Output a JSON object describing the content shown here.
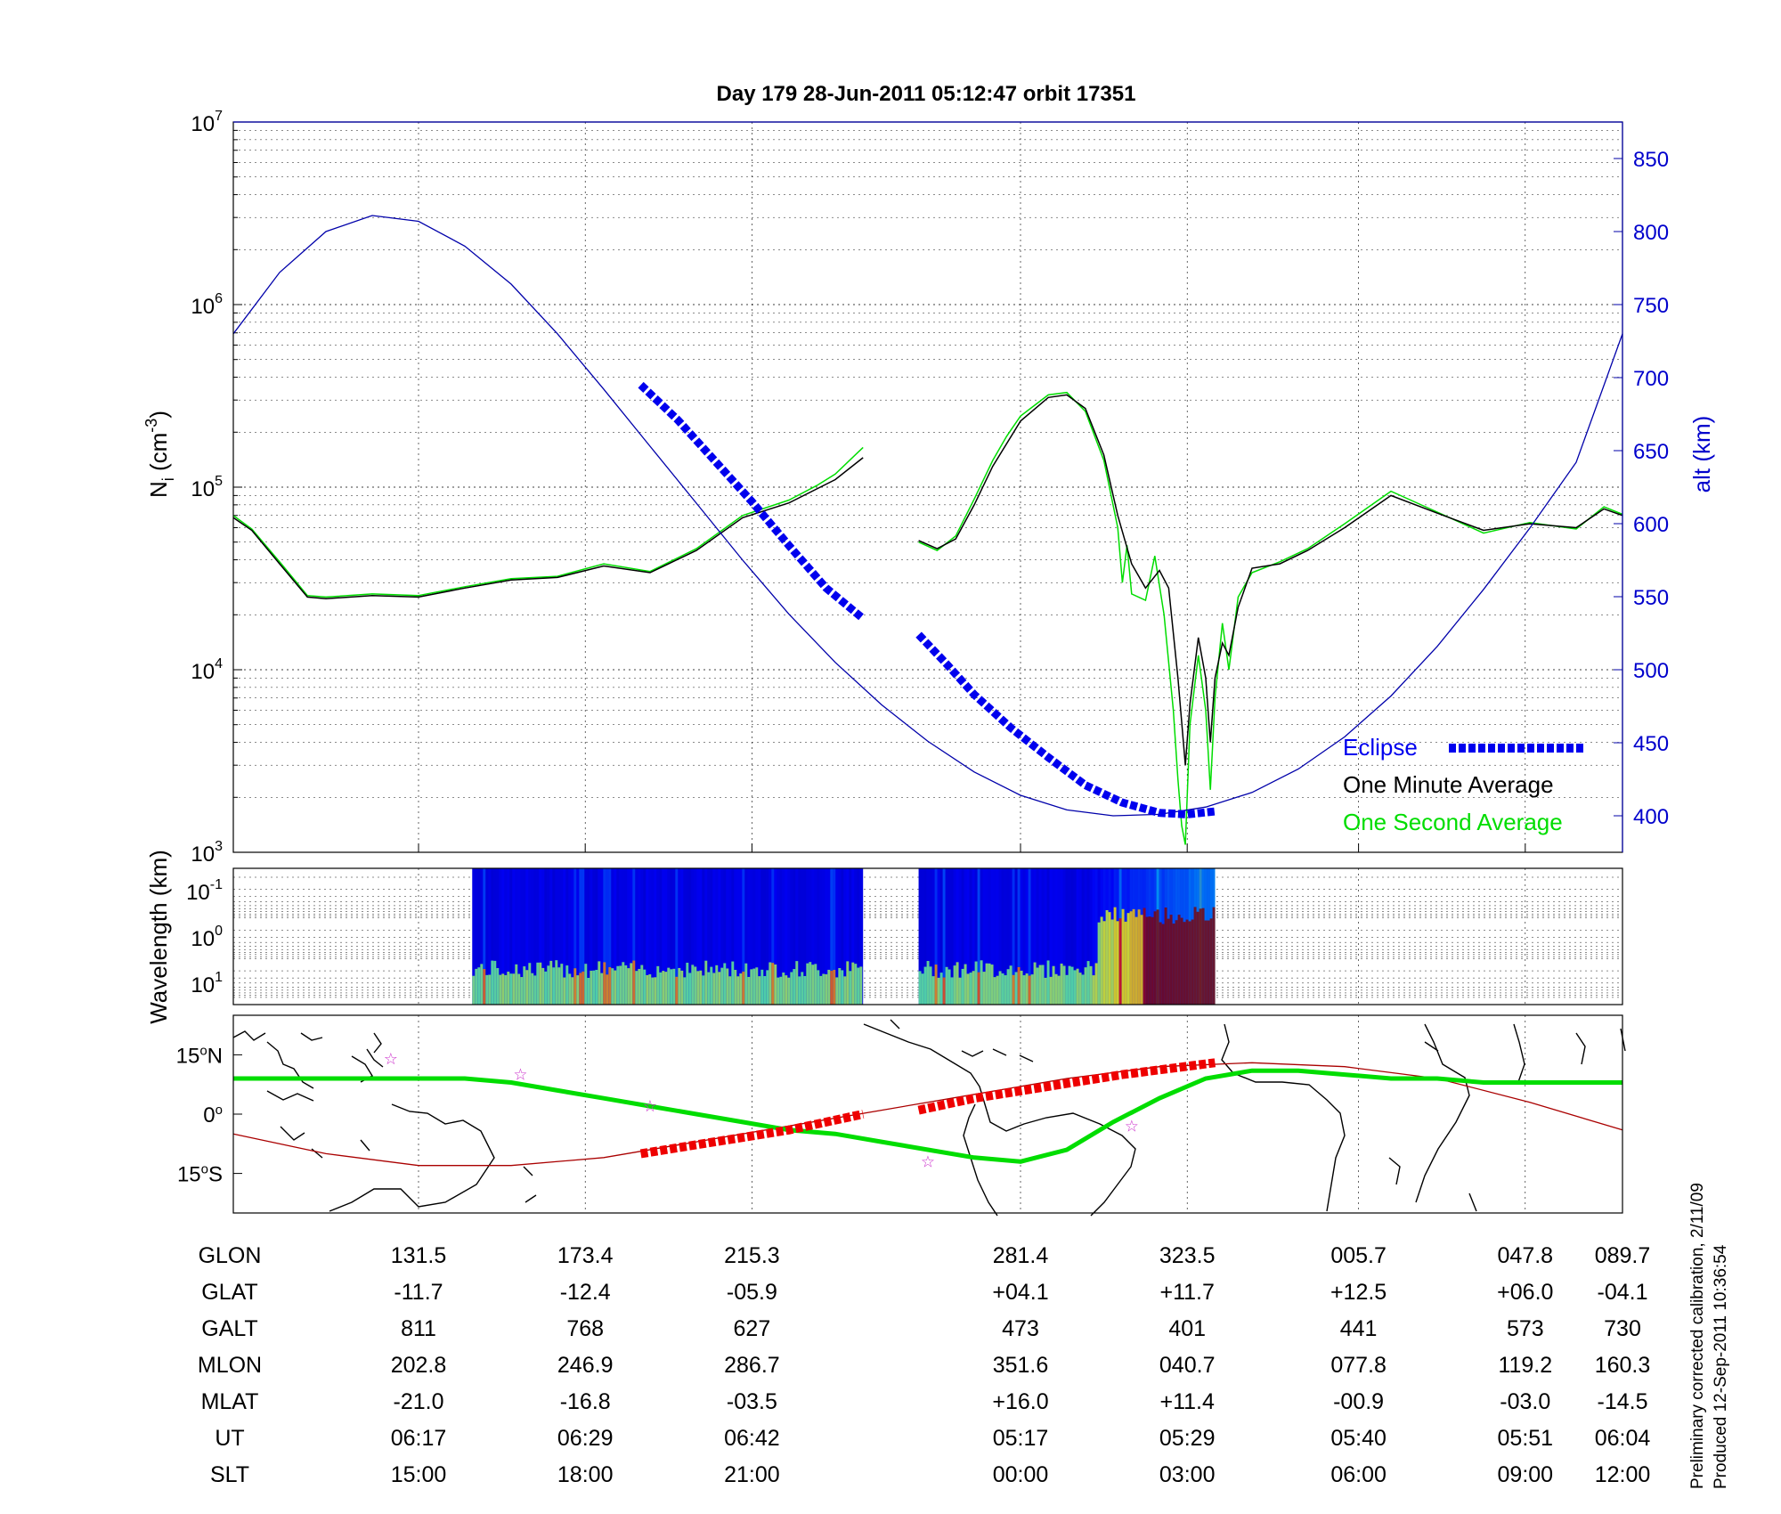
{
  "title": "Day 179  28-Jun-2011 05:12:47   orbit 17351",
  "colors": {
    "altitude": "#0000aa",
    "one_minute": "#000000",
    "one_second": "#00dd00",
    "eclipse": "#0000ee",
    "eclipse_map": "#ee0000",
    "star": "#cc33cc",
    "magnetic_equator": "#aa0000"
  },
  "chart_data": [
    {
      "type": "line",
      "panel": "density",
      "ylabel_main": "N",
      "ylabel_sub": "i",
      "ylabel_unit_pre": " (cm",
      "ylabel_unit_exp": "-3",
      "ylabel_unit_post": ")",
      "ylabel_right": "alt (km)",
      "y_scale": "log",
      "ylim": [
        1000,
        10000000
      ],
      "yticks": [
        {
          "base": "10",
          "exp": "3"
        },
        {
          "base": "10",
          "exp": "4"
        },
        {
          "base": "10",
          "exp": "5"
        },
        {
          "base": "10",
          "exp": "6"
        },
        {
          "base": "10",
          "exp": "7"
        }
      ],
      "y2lim": [
        375,
        875
      ],
      "y2ticks": [
        "400",
        "450",
        "500",
        "550",
        "600",
        "650",
        "700",
        "750",
        "800",
        "850"
      ],
      "grid": true,
      "legend": [
        {
          "name": "Eclipse",
          "color": "#0000ee",
          "style": "thick-dotted"
        },
        {
          "name": "One Minute Average",
          "color": "#000000"
        },
        {
          "name": "One Second Average",
          "color": "#00dd00"
        }
      ],
      "legend_placement": "bottom-right",
      "series": [
        {
          "name": "One Minute Average",
          "segments": [
            [
              [
                0,
                68000
              ],
              [
                0.2,
                58000
              ],
              [
                0.5,
                38000
              ],
              [
                0.8,
                25000
              ],
              [
                1,
                24500
              ],
              [
                1.5,
                25500
              ],
              [
                2,
                25000
              ],
              [
                2.5,
                28000
              ],
              [
                3,
                31000
              ],
              [
                3.5,
                32000
              ],
              [
                4,
                37000
              ],
              [
                4.5,
                34000
              ],
              [
                5,
                45000
              ],
              [
                5.5,
                68000
              ],
              [
                6,
                82000
              ],
              [
                6.5,
                110000
              ],
              [
                6.8,
                145000
              ]
            ],
            [
              [
                7.4,
                51000
              ],
              [
                7.6,
                46000
              ],
              [
                7.8,
                52000
              ],
              [
                8,
                80000
              ],
              [
                8.2,
                130000
              ],
              [
                8.5,
                230000
              ],
              [
                8.8,
                310000
              ],
              [
                9,
                320000
              ],
              [
                9.2,
                270000
              ],
              [
                9.4,
                150000
              ],
              [
                9.55,
                70000
              ],
              [
                9.7,
                38000
              ],
              [
                9.85,
                28000
              ],
              [
                10,
                35000
              ],
              [
                10.1,
                28000
              ],
              [
                10.2,
                9000
              ],
              [
                10.28,
                3000
              ],
              [
                10.33,
                6500
              ],
              [
                10.42,
                15000
              ],
              [
                10.5,
                9000
              ],
              [
                10.55,
                4000
              ],
              [
                10.6,
                9000
              ],
              [
                10.68,
                14000
              ],
              [
                10.75,
                12000
              ],
              [
                10.85,
                22000
              ],
              [
                11,
                36000
              ],
              [
                11.3,
                38000
              ],
              [
                11.6,
                45000
              ],
              [
                12,
                60000
              ],
              [
                12.5,
                90000
              ],
              [
                13,
                72000
              ],
              [
                13.5,
                58000
              ],
              [
                14,
                63000
              ],
              [
                14.5,
                60000
              ],
              [
                14.8,
                76000
              ],
              [
                15,
                70000
              ]
            ]
          ]
        },
        {
          "name": "One Second Average",
          "segments": [
            [
              [
                0,
                70000
              ],
              [
                0.2,
                59000
              ],
              [
                0.5,
                39000
              ],
              [
                0.8,
                25500
              ],
              [
                1,
                25000
              ],
              [
                1.5,
                26000
              ],
              [
                2,
                25500
              ],
              [
                2.5,
                28500
              ],
              [
                3,
                31500
              ],
              [
                3.5,
                32500
              ],
              [
                4,
                38000
              ],
              [
                4.5,
                34500
              ],
              [
                5,
                46000
              ],
              [
                5.5,
                70000
              ],
              [
                6,
                85000
              ],
              [
                6.3,
                102000
              ],
              [
                6.5,
                118000
              ],
              [
                6.8,
                165000
              ]
            ],
            [
              [
                7.4,
                50000
              ],
              [
                7.6,
                45000
              ],
              [
                7.8,
                54000
              ],
              [
                8,
                86000
              ],
              [
                8.2,
                140000
              ],
              [
                8.35,
                190000
              ],
              [
                8.5,
                245000
              ],
              [
                8.8,
                320000
              ],
              [
                9,
                330000
              ],
              [
                9.2,
                260000
              ],
              [
                9.4,
                140000
              ],
              [
                9.55,
                60000
              ],
              [
                9.6,
                30000
              ],
              [
                9.65,
                48000
              ],
              [
                9.7,
                26000
              ],
              [
                9.85,
                24000
              ],
              [
                9.95,
                42000
              ],
              [
                10.05,
                20000
              ],
              [
                10.15,
                6000
              ],
              [
                10.2,
                2500
              ],
              [
                10.24,
                1400
              ],
              [
                10.28,
                1100
              ],
              [
                10.33,
                5000
              ],
              [
                10.42,
                12000
              ],
              [
                10.5,
                6000
              ],
              [
                10.55,
                2200
              ],
              [
                10.6,
                7000
              ],
              [
                10.68,
                18000
              ],
              [
                10.75,
                10000
              ],
              [
                10.85,
                25000
              ],
              [
                11,
                34000
              ],
              [
                11.3,
                39000
              ],
              [
                11.6,
                46000
              ],
              [
                12,
                63000
              ],
              [
                12.5,
                95000
              ],
              [
                13,
                73000
              ],
              [
                13.5,
                56000
              ],
              [
                14,
                64000
              ],
              [
                14.5,
                59000
              ],
              [
                14.8,
                78000
              ],
              [
                15,
                71000
              ]
            ]
          ]
        },
        {
          "name": "Altitude",
          "axis": "right",
          "x": [
            0,
            0.5,
            1,
            1.5,
            2,
            2.5,
            3,
            3.5,
            4,
            4.5,
            5,
            5.5,
            6,
            6.5,
            7,
            7.5,
            8,
            8.5,
            9,
            9.5,
            10,
            10.5,
            11,
            11.5,
            12,
            12.5,
            13,
            13.5,
            14,
            14.5,
            15
          ],
          "y": [
            730,
            772,
            800,
            811,
            807,
            790,
            764,
            730,
            692,
            653,
            614,
            575,
            538,
            505,
            476,
            451,
            430,
            414,
            404,
            400,
            401,
            406,
            416,
            432,
            454,
            482,
            516,
            555,
            597,
            642,
            730
          ]
        },
        {
          "name": "Eclipse",
          "segments": [
            [
              [
                4.4,
                695
              ],
              [
                4.8,
                671
              ],
              [
                5.2,
                643
              ],
              [
                5.6,
                615
              ],
              [
                6,
                585
              ],
              [
                6.4,
                556
              ],
              [
                6.8,
                535
              ]
            ],
            [
              [
                7.4,
                524
              ],
              [
                7.7,
                504
              ],
              [
                8,
                483
              ],
              [
                8.4,
                460
              ],
              [
                8.8,
                440
              ],
              [
                9.2,
                421
              ],
              [
                9.6,
                409
              ],
              [
                10,
                402
              ],
              [
                10.3,
                401
              ],
              [
                10.6,
                403
              ]
            ]
          ]
        }
      ]
    },
    {
      "type": "heatmap",
      "panel": "spectrogram",
      "ylabel": "Wavelength (km)",
      "yticks": [
        {
          "base": "10",
          "exp": "-1"
        },
        {
          "base": "10",
          "exp": "0"
        },
        {
          "base": "10",
          "exp": "1"
        }
      ],
      "blocks": [
        {
          "x_start": 2.58,
          "x_end": 6.8
        },
        {
          "x_start": 7.4,
          "x_end": 10.6
        }
      ],
      "colormap": "jet"
    },
    {
      "type": "line",
      "panel": "map",
      "yticks": [
        {
          "deg": "15",
          "hem": "N"
        },
        {
          "deg": "0",
          "hem": ""
        },
        {
          "deg": "15",
          "hem": "S"
        }
      ],
      "ylim": [
        -25,
        25
      ],
      "series": [
        {
          "name": "Magnetic equator trace",
          "x": [
            0,
            0.5,
            1,
            1.5,
            2,
            2.5,
            3,
            3.5,
            4,
            4.5,
            5,
            5.5,
            6,
            6.5,
            7,
            7.5,
            8,
            8.5,
            9,
            9.5,
            10,
            10.5,
            11,
            11.5,
            12,
            12.5,
            13,
            13.5,
            14,
            14.5,
            15
          ],
          "y": [
            9,
            9,
            9,
            9,
            9,
            9,
            8,
            6,
            4,
            2,
            0,
            -2,
            -4,
            -5,
            -7,
            -9,
            -11,
            -12,
            -9,
            -2,
            4,
            9,
            11,
            11,
            10,
            9,
            9,
            8,
            8,
            8,
            8
          ]
        },
        {
          "name": "Orbit track",
          "x": [
            0,
            1,
            2,
            3,
            4,
            5,
            6,
            7,
            8,
            9,
            10,
            11,
            12,
            13,
            14,
            15
          ],
          "y": [
            -5,
            -10,
            -13,
            -13,
            -11,
            -7,
            -3,
            1,
            5,
            9,
            12,
            13,
            12,
            9,
            3,
            -4
          ]
        },
        {
          "name": "Eclipse",
          "segments": [
            [
              [
                4.4,
                -10
              ],
              [
                5.2,
                -7
              ],
              [
                6,
                -4
              ],
              [
                6.8,
                0
              ]
            ],
            [
              [
                7.4,
                1
              ],
              [
                8,
                4
              ],
              [
                8.8,
                7
              ],
              [
                9.6,
                10
              ],
              [
                10.6,
                13
              ]
            ]
          ]
        }
      ],
      "stars": [
        [
          1.7,
          14
        ],
        [
          3.1,
          10
        ],
        [
          4.5,
          2
        ],
        [
          7.5,
          -12
        ],
        [
          9.7,
          -3
        ]
      ]
    }
  ],
  "table": {
    "rows": [
      {
        "label": "GLON",
        "values": [
          "131.5",
          "173.4",
          "215.3",
          "281.4",
          "323.5",
          "005.7",
          "047.8",
          "089.7"
        ]
      },
      {
        "label": "GLAT",
        "values": [
          "-11.7",
          "-12.4",
          "-05.9",
          "+04.1",
          "+11.7",
          "+12.5",
          "+06.0",
          "-04.1"
        ]
      },
      {
        "label": "GALT",
        "values": [
          "811",
          "768",
          "627",
          "473",
          "401",
          "441",
          "573",
          "730"
        ]
      },
      {
        "label": "MLON",
        "values": [
          "202.8",
          "246.9",
          "286.7",
          "351.6",
          "040.7",
          "077.8",
          "119.2",
          "160.3"
        ]
      },
      {
        "label": "MLAT",
        "values": [
          "-21.0",
          "-16.8",
          "-03.5",
          "+16.0",
          "+11.4",
          "-00.9",
          "-03.0",
          "-14.5"
        ]
      },
      {
        "label": "UT",
        "values": [
          "06:17",
          "06:29",
          "06:42",
          "05:17",
          "05:29",
          "05:40",
          "05:51",
          "06:04"
        ]
      },
      {
        "label": "SLT",
        "values": [
          "15:00",
          "18:00",
          "21:00",
          "00:00",
          "03:00",
          "06:00",
          "09:00",
          "12:00"
        ]
      }
    ]
  },
  "notes": {
    "calibration": "Preliminary corrected calibration, 2/11/09",
    "produced": "Produced 12-Sep-2011 10:36:54"
  }
}
